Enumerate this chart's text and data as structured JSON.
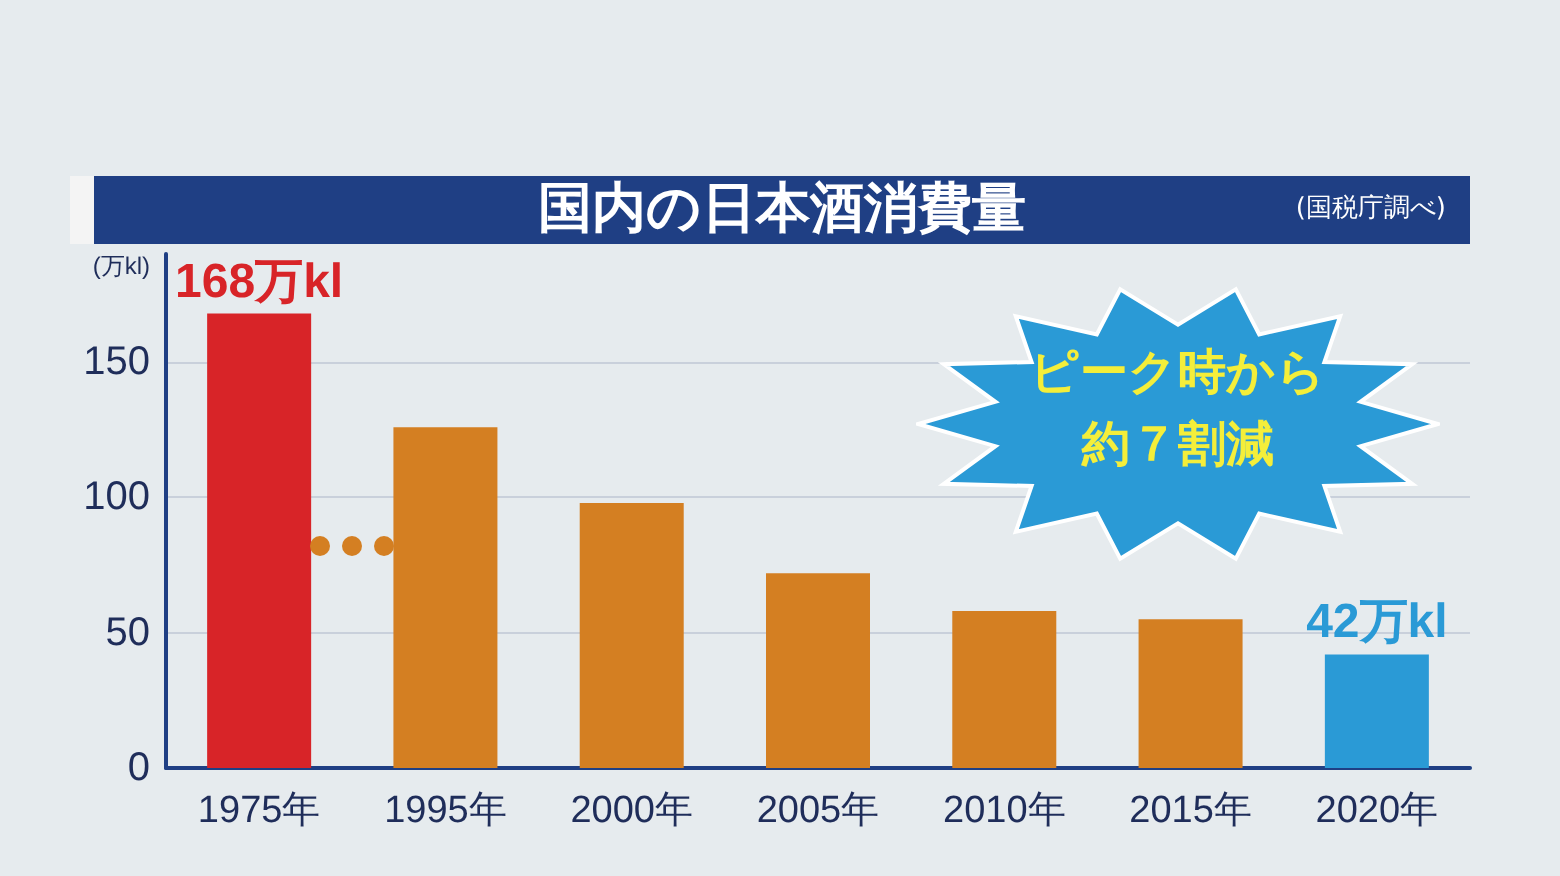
{
  "chart_data": {
    "type": "bar",
    "title": "国内の日本酒消費量",
    "subtitle": "(国税庁調べ)",
    "ylabel": "(万kl)",
    "categories": [
      "1975年",
      "1995年",
      "2000年",
      "2005年",
      "2010年",
      "2015年",
      "2020年"
    ],
    "values": [
      168,
      126,
      98,
      72,
      58,
      55,
      42
    ],
    "colors": [
      "#d82428",
      "#d47f22",
      "#d47f22",
      "#d47f22",
      "#d47f22",
      "#d47f22",
      "#2a9ad6"
    ],
    "value_labels": [
      "168万kl",
      null,
      null,
      null,
      null,
      null,
      "42万kl"
    ],
    "ylim": [
      0,
      190
    ],
    "yticks": [
      0,
      50,
      100,
      150
    ],
    "grid": "y",
    "annotations": [
      "ピーク時から",
      "約７割減"
    ]
  }
}
